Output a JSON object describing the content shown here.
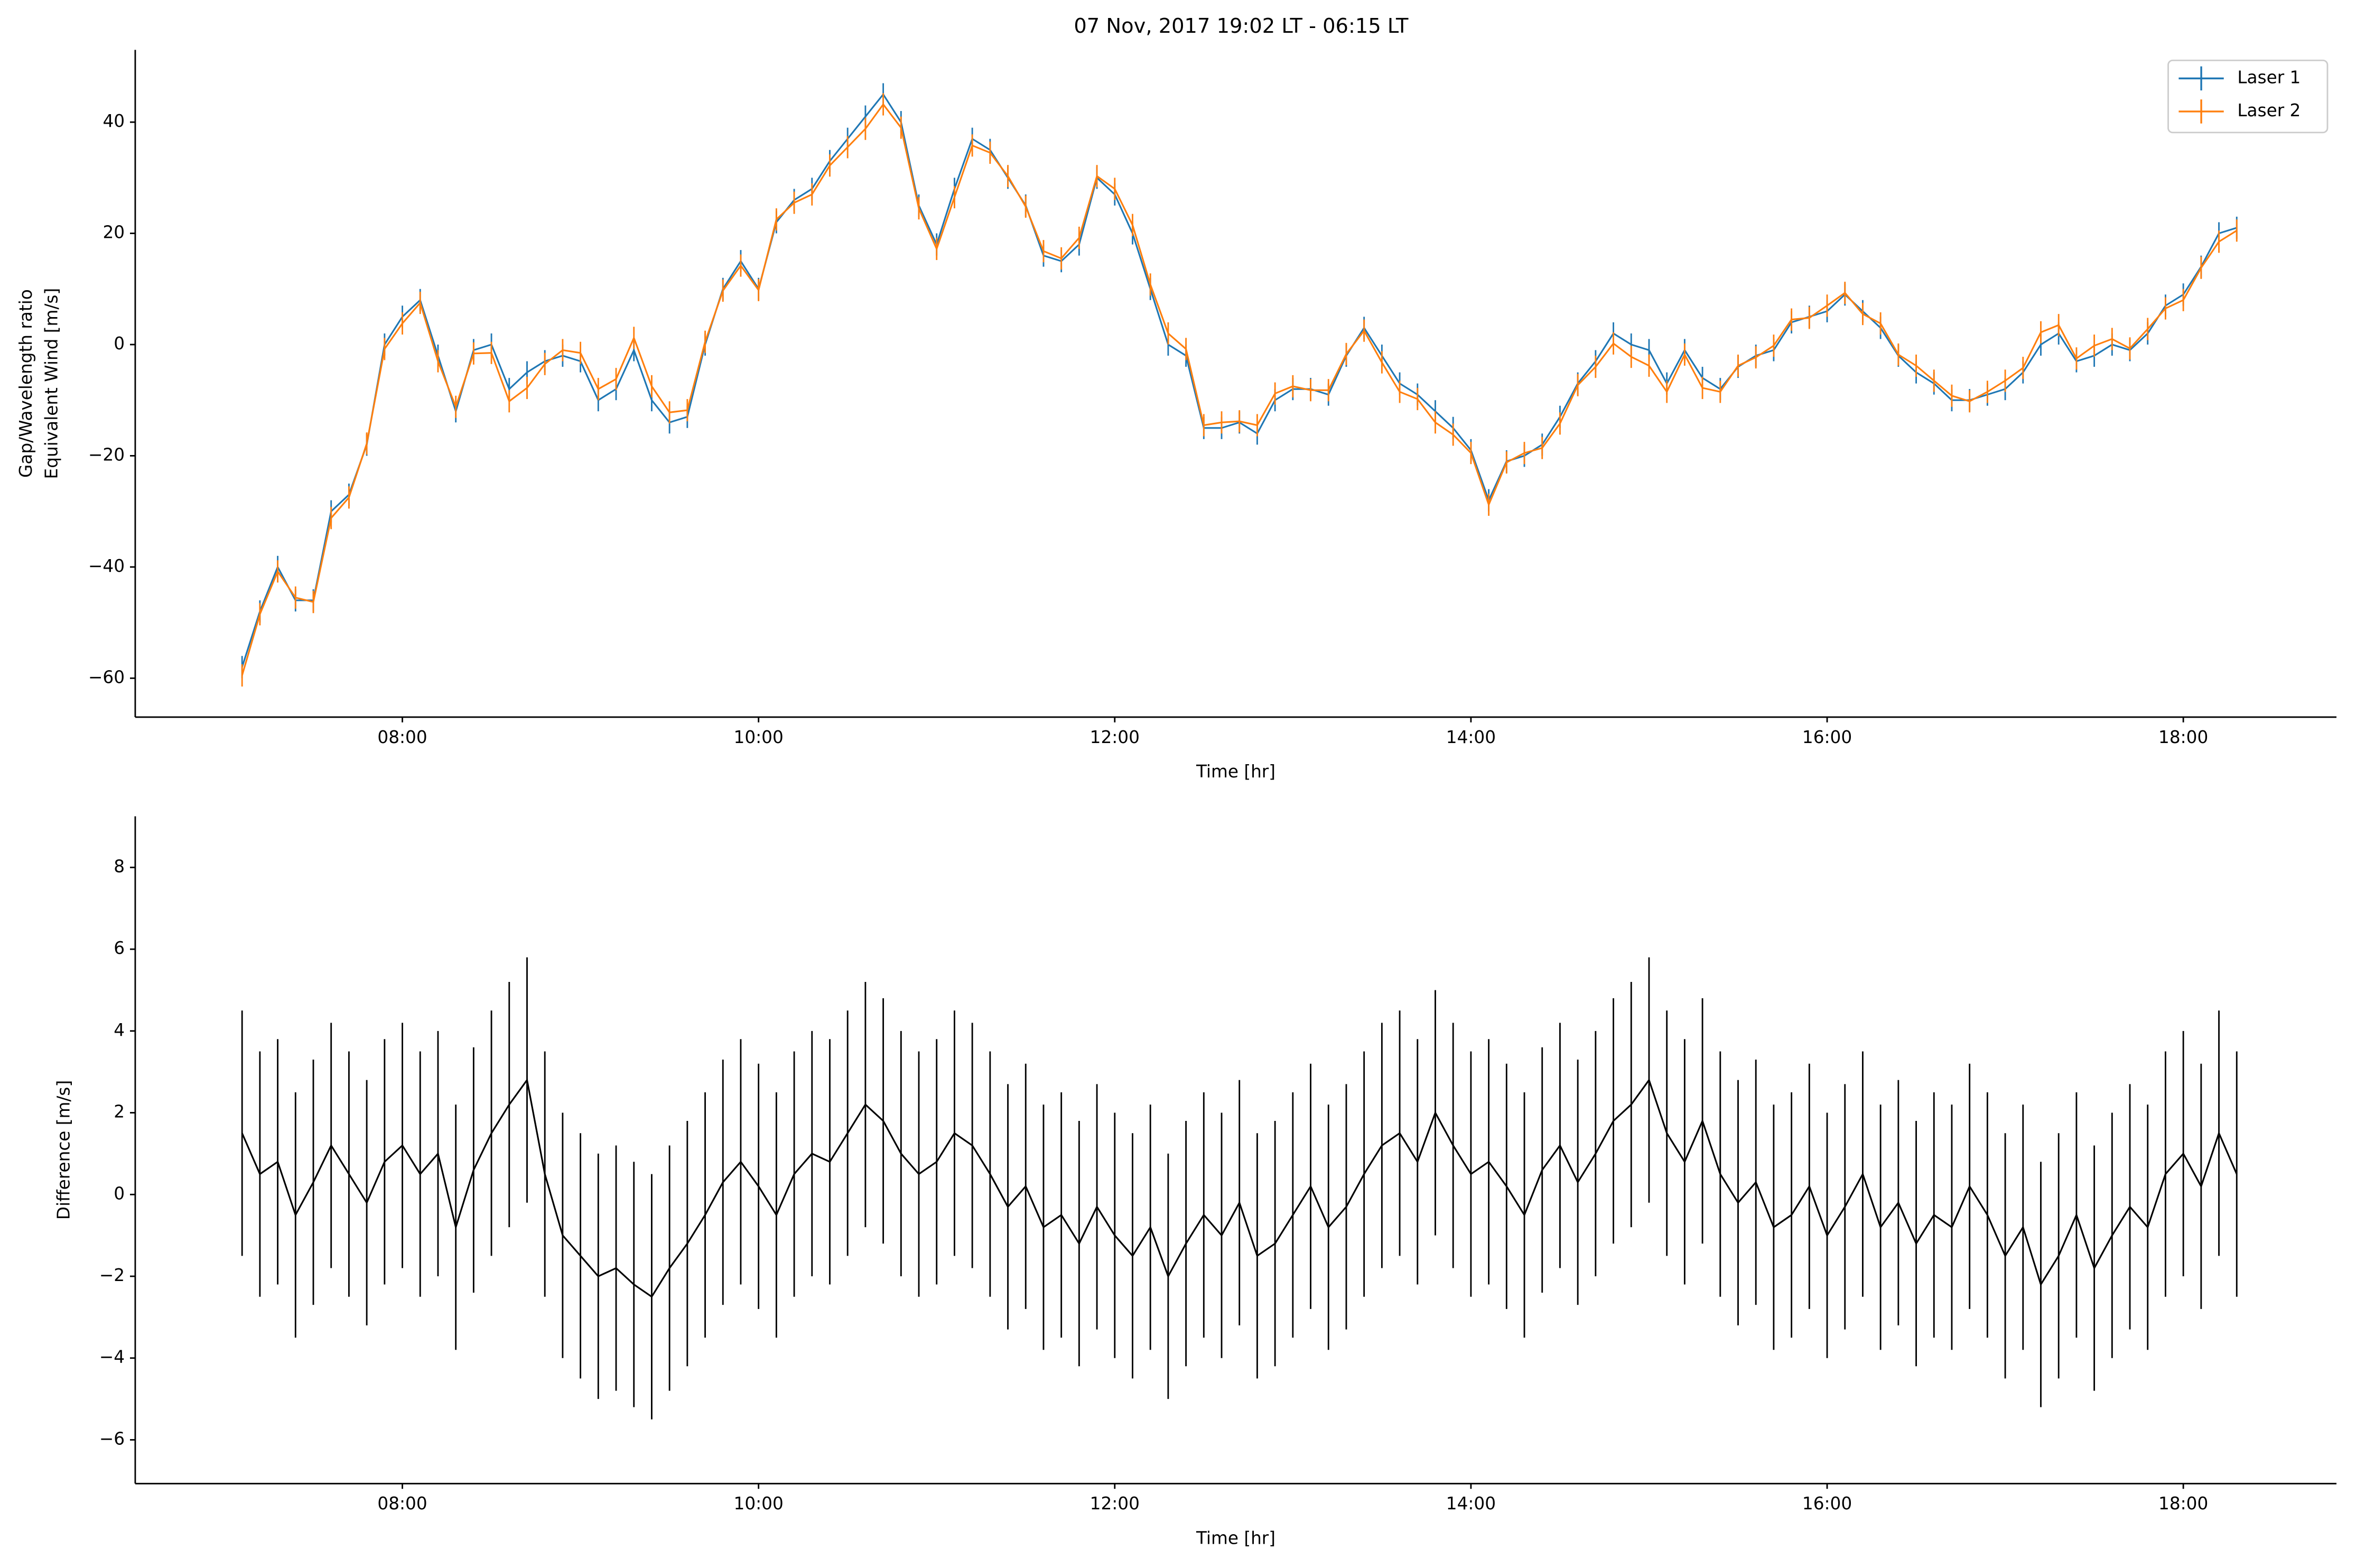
{
  "chart_data": [
    {
      "type": "line",
      "title": "07 Nov, 2017 19:02 LT - 06:15 LT",
      "xlabel": "Time [hr]",
      "ylabel": [
        "Gap/Wavelength ratio",
        "Equivalent Wind [m/s]"
      ],
      "x": [
        7.1,
        7.2,
        7.3,
        7.4,
        7.5,
        7.6,
        7.7,
        7.8,
        7.9,
        8.0,
        8.1,
        8.2,
        8.3,
        8.4,
        8.5,
        8.6,
        8.7,
        8.8,
        8.9,
        9.0,
        9.1,
        9.2,
        9.3,
        9.4,
        9.5,
        9.6,
        9.7,
        9.8,
        9.9,
        10.0,
        10.1,
        10.2,
        10.3,
        10.4,
        10.5,
        10.6,
        10.7,
        10.8,
        10.9,
        11.0,
        11.1,
        11.2,
        11.3,
        11.4,
        11.5,
        11.6,
        11.7,
        11.8,
        11.9,
        12.0,
        12.1,
        12.2,
        12.3,
        12.4,
        12.5,
        12.6,
        12.7,
        12.8,
        12.9,
        13.0,
        13.1,
        13.2,
        13.3,
        13.4,
        13.5,
        13.6,
        13.7,
        13.8,
        13.9,
        14.0,
        14.1,
        14.2,
        14.3,
        14.4,
        14.5,
        14.6,
        14.7,
        14.8,
        14.9,
        15.0,
        15.1,
        15.2,
        15.3,
        15.4,
        15.5,
        15.6,
        15.7,
        15.8,
        15.9,
        16.0,
        16.1,
        16.2,
        16.3,
        16.4,
        16.5,
        16.6,
        16.7,
        16.8,
        16.9,
        17.0,
        17.1,
        17.2,
        17.3,
        17.4,
        17.5,
        17.6,
        17.7,
        17.8,
        17.9,
        18.0,
        18.1,
        18.2,
        18.3
      ],
      "series": [
        {
          "name": "Laser 1",
          "color": "#1f77b4",
          "error": 2,
          "values": [
            -58,
            -48,
            -40,
            -46,
            -46,
            -30,
            -27,
            -18,
            0,
            5,
            8,
            -2,
            -12,
            -1,
            0,
            -8,
            -5,
            -3,
            -2,
            -3,
            -10,
            -8,
            -1,
            -10,
            -14,
            -13,
            0,
            10,
            15,
            10,
            22,
            26,
            28,
            33,
            37,
            41,
            45,
            40,
            25,
            18,
            28,
            37,
            35,
            30,
            25,
            16,
            15,
            18,
            30,
            27,
            20,
            10,
            0,
            -2,
            -15,
            -15,
            -14,
            -16,
            -10,
            -8,
            -8,
            -9,
            -2,
            3,
            -2,
            -7,
            -9,
            -12,
            -15,
            -19,
            -28,
            -21,
            -20,
            -18,
            -13,
            -7,
            -3,
            2,
            0,
            -1,
            -7,
            -1,
            -6,
            -8,
            -4,
            -2,
            -1,
            4,
            5,
            6,
            9,
            6,
            3,
            -2,
            -5,
            -7,
            -10,
            -10,
            -9,
            -8,
            -5,
            0,
            2,
            -3,
            -2,
            0,
            -1,
            2,
            7,
            9,
            14,
            20,
            21
          ]
        },
        {
          "name": "Laser 2",
          "color": "#ff7f0e",
          "error": 2,
          "values": [
            -59.5,
            -48.5,
            -40.8,
            -45.5,
            -46.3,
            -31.2,
            -27.5,
            -17.8,
            -0.8,
            3.8,
            7.5,
            -3.0,
            -11.2,
            -1.6,
            -1.5,
            -10.2,
            -7.8,
            -3.5,
            -1.0,
            -1.5,
            -8.0,
            -6.2,
            1.2,
            -7.5,
            -12.2,
            -11.8,
            0.5,
            9.7,
            14.2,
            9.8,
            22.5,
            25.5,
            27.0,
            32.2,
            35.5,
            38.8,
            43.2,
            39.0,
            24.5,
            17.2,
            26.5,
            35.8,
            34.5,
            30.3,
            24.8,
            16.8,
            15.5,
            19.2,
            30.3,
            28.0,
            21.5,
            10.8,
            2.0,
            -0.8,
            -14.5,
            -14.0,
            -13.8,
            -14.5,
            -8.8,
            -7.5,
            -8.2,
            -8.2,
            -1.7,
            2.5,
            -3.2,
            -8.5,
            -9.8,
            -14.0,
            -16.2,
            -19.5,
            -28.8,
            -21.2,
            -19.5,
            -18.6,
            -14.2,
            -7.3,
            -4.0,
            0.2,
            -2.2,
            -3.8,
            -8.5,
            -1.8,
            -7.8,
            -8.5,
            -3.8,
            -2.3,
            -0.2,
            4.5,
            4.8,
            7.0,
            9.3,
            5.5,
            3.8,
            -1.8,
            -3.8,
            -6.5,
            -9.2,
            -10.2,
            -8.5,
            -6.5,
            -4.2,
            2.2,
            3.5,
            -2.5,
            -0.2,
            1.0,
            -0.7,
            2.8,
            6.5,
            8.0,
            13.8,
            18.5,
            20.5
          ]
        }
      ],
      "xlim": [
        6.5,
        18.86
      ],
      "ylim": [
        -67,
        53
      ],
      "xticks": [
        {
          "value": 8,
          "label": "08:00"
        },
        {
          "value": 10,
          "label": "10:00"
        },
        {
          "value": 12,
          "label": "12:00"
        },
        {
          "value": 14,
          "label": "14:00"
        },
        {
          "value": 16,
          "label": "16:00"
        },
        {
          "value": 18,
          "label": "18:00"
        }
      ],
      "yticks": [
        {
          "value": -60,
          "label": "−60"
        },
        {
          "value": -40,
          "label": "−40"
        },
        {
          "value": -20,
          "label": "−20"
        },
        0,
        20,
        40
      ],
      "legend": "upper right"
    },
    {
      "type": "line",
      "xlabel": "Time [hr]",
      "ylabel": [
        "Difference [m/s]"
      ],
      "color": "#000000",
      "error": 3,
      "x": [
        7.1,
        7.2,
        7.3,
        7.4,
        7.5,
        7.6,
        7.7,
        7.8,
        7.9,
        8.0,
        8.1,
        8.2,
        8.3,
        8.4,
        8.5,
        8.6,
        8.7,
        8.8,
        8.9,
        9.0,
        9.1,
        9.2,
        9.3,
        9.4,
        9.5,
        9.6,
        9.7,
        9.8,
        9.9,
        10.0,
        10.1,
        10.2,
        10.3,
        10.4,
        10.5,
        10.6,
        10.7,
        10.8,
        10.9,
        11.0,
        11.1,
        11.2,
        11.3,
        11.4,
        11.5,
        11.6,
        11.7,
        11.8,
        11.9,
        12.0,
        12.1,
        12.2,
        12.3,
        12.4,
        12.5,
        12.6,
        12.7,
        12.8,
        12.9,
        13.0,
        13.1,
        13.2,
        13.3,
        13.4,
        13.5,
        13.6,
        13.7,
        13.8,
        13.9,
        14.0,
        14.1,
        14.2,
        14.3,
        14.4,
        14.5,
        14.6,
        14.7,
        14.8,
        14.9,
        15.0,
        15.1,
        15.2,
        15.3,
        15.4,
        15.5,
        15.6,
        15.7,
        15.8,
        15.9,
        16.0,
        16.1,
        16.2,
        16.3,
        16.4,
        16.5,
        16.6,
        16.7,
        16.8,
        16.9,
        17.0,
        17.1,
        17.2,
        17.3,
        17.4,
        17.5,
        17.6,
        17.7,
        17.8,
        17.9,
        18.0,
        18.1,
        18.2,
        18.3
      ],
      "values": [
        1.5,
        0.5,
        0.8,
        -0.5,
        0.3,
        1.2,
        0.5,
        -0.2,
        0.8,
        1.2,
        0.5,
        1.0,
        -0.8,
        0.6,
        1.5,
        2.2,
        2.8,
        0.5,
        -1.0,
        -1.5,
        -2.0,
        -1.8,
        -2.2,
        -2.5,
        -1.8,
        -1.2,
        -0.5,
        0.3,
        0.8,
        0.2,
        -0.5,
        0.5,
        1.0,
        0.8,
        1.5,
        2.2,
        1.8,
        1.0,
        0.5,
        0.8,
        1.5,
        1.2,
        0.5,
        -0.3,
        0.2,
        -0.8,
        -0.5,
        -1.2,
        -0.3,
        -1.0,
        -1.5,
        -0.8,
        -2.0,
        -1.2,
        -0.5,
        -1.0,
        -0.2,
        -1.5,
        -1.2,
        -0.5,
        0.2,
        -0.8,
        -0.3,
        0.5,
        1.2,
        1.5,
        0.8,
        2.0,
        1.2,
        0.5,
        0.8,
        0.2,
        -0.5,
        0.6,
        1.2,
        0.3,
        1.0,
        1.8,
        2.2,
        2.8,
        1.5,
        0.8,
        1.8,
        0.5,
        -0.2,
        0.3,
        -0.8,
        -0.5,
        0.2,
        -1.0,
        -0.3,
        0.5,
        -0.8,
        -0.2,
        -1.2,
        -0.5,
        -0.8,
        0.2,
        -0.5,
        -1.5,
        -0.8,
        -2.2,
        -1.5,
        -0.5,
        -1.8,
        -1.0,
        -0.3,
        -0.8,
        0.5,
        1.0,
        0.2,
        1.5,
        0.5
      ],
      "xlim": [
        6.5,
        18.86
      ],
      "ylim": [
        -7.07,
        9.25
      ],
      "xticks": [
        {
          "value": 8,
          "label": "08:00"
        },
        {
          "value": 10,
          "label": "10:00"
        },
        {
          "value": 12,
          "label": "12:00"
        },
        {
          "value": 14,
          "label": "14:00"
        },
        {
          "value": 16,
          "label": "16:00"
        },
        {
          "value": 18,
          "label": "18:00"
        }
      ],
      "yticks": [
        {
          "value": -6,
          "label": "−6"
        },
        {
          "value": -4,
          "label": "−4"
        },
        {
          "value": -2,
          "label": "−2"
        },
        0,
        2,
        4,
        6,
        8
      ]
    }
  ]
}
